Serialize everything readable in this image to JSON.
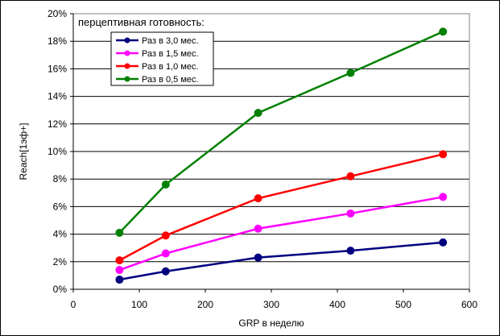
{
  "chart_data": {
    "type": "line",
    "title": "",
    "xlabel": "GRP в неделю",
    "ylabel": "Reach[1эф+]",
    "xlim": [
      0,
      600
    ],
    "ylim": [
      0,
      20
    ],
    "x_ticks": [
      "0",
      "100",
      "200",
      "300",
      "400",
      "500",
      "600"
    ],
    "y_ticks": [
      "0%",
      "2%",
      "4%",
      "6%",
      "8%",
      "10%",
      "12%",
      "14%",
      "16%",
      "18%",
      "20%"
    ],
    "grid": "horizontal",
    "legend_placement": "top-left",
    "legend_title": "перцептивная готовность:",
    "x": [
      70,
      140,
      280,
      420,
      560
    ],
    "series": [
      {
        "name": "Раз в 3,0 мес.",
        "color": "#000080",
        "values": [
          0.7,
          1.3,
          2.3,
          2.8,
          3.4
        ]
      },
      {
        "name": "Раз в 1,5 мес.",
        "color": "#ff00ff",
        "values": [
          1.4,
          2.6,
          4.4,
          5.5,
          6.7
        ]
      },
      {
        "name": "Раз в 1,0 мес.",
        "color": "#ff0000",
        "values": [
          2.1,
          3.9,
          6.6,
          8.2,
          9.8
        ]
      },
      {
        "name": "Раз в 0,5 мес.",
        "color": "#008000",
        "values": [
          4.1,
          7.6,
          12.8,
          15.7,
          18.7
        ]
      }
    ]
  }
}
